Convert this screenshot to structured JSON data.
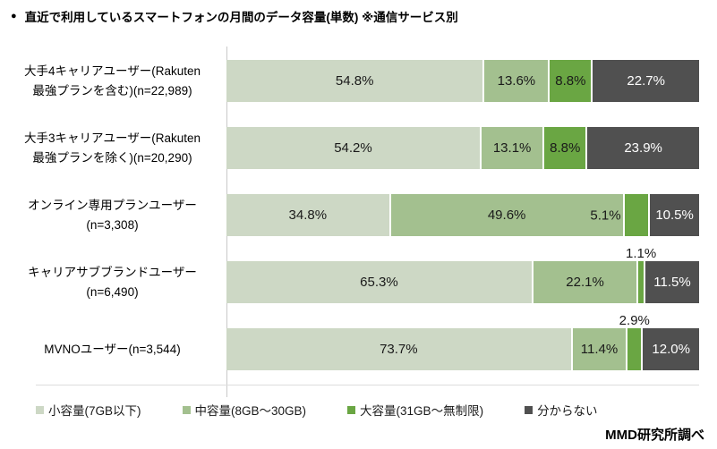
{
  "header": {
    "bullet": "●",
    "title": "直近で利用しているスマートフォンの月間のデータ容量(単数) ※通信サービス別"
  },
  "footer": {
    "source": "MMD研究所調べ"
  },
  "chart_data": {
    "type": "bar",
    "orientation": "horizontal",
    "stacked": true,
    "title": "直近で利用しているスマートフォンの月間のデータ容量(単数) ※通信サービス別",
    "xlim": [
      0,
      100
    ],
    "grid": false,
    "legend_position": "bottom",
    "categories": [
      "大手4キャリアユーザー(Rakuten最強プランを含む)(n=22,989)",
      "大手3キャリアユーザー(Rakuten最強プランを除く)(n=20,290)",
      "オンライン専用プランユーザー(n=3,308)",
      "キャリアサブブランドユーザー(n=6,490)",
      "MVNOユーザー(n=3,544)"
    ],
    "series": [
      {
        "name": "小容量(7GB以下)",
        "color": "#cdd8c5",
        "text_color": "#1a1a1a",
        "values": [
          54.8,
          54.2,
          34.8,
          65.3,
          73.7
        ]
      },
      {
        "name": "中容量(8GB〜30GB)",
        "color": "#a3c08f",
        "text_color": "#1a1a1a",
        "values": [
          13.6,
          13.1,
          49.6,
          22.1,
          11.4
        ]
      },
      {
        "name": "大容量(31GB〜無制限)",
        "color": "#6aa643",
        "text_color": "#1a1a1a",
        "values": [
          8.8,
          8.8,
          5.1,
          1.1,
          2.9
        ]
      },
      {
        "name": "分からない",
        "color": "#505050",
        "text_color": "#ffffff",
        "values": [
          22.7,
          23.9,
          10.5,
          11.5,
          12.0
        ]
      }
    ],
    "bars": [
      {
        "label_lines": [
          "大手4キャリアユーザー(Rakuten",
          "最強プランを含む)(n=22,989)"
        ],
        "segments": [
          {
            "series": 0,
            "value": 54.8,
            "label": "54.8%",
            "label_pos": "inside"
          },
          {
            "series": 1,
            "value": 13.6,
            "label": "13.6%",
            "label_pos": "inside"
          },
          {
            "series": 2,
            "value": 8.8,
            "label": "8.8%",
            "label_pos": "inside"
          },
          {
            "series": 3,
            "value": 22.7,
            "label": "22.7%",
            "label_pos": "inside"
          }
        ]
      },
      {
        "label_lines": [
          "大手3キャリアユーザー(Rakuten",
          "最強プランを除く)(n=20,290)"
        ],
        "segments": [
          {
            "series": 0,
            "value": 54.2,
            "label": "54.2%",
            "label_pos": "inside"
          },
          {
            "series": 1,
            "value": 13.1,
            "label": "13.1%",
            "label_pos": "inside"
          },
          {
            "series": 2,
            "value": 8.8,
            "label": "8.8%",
            "label_pos": "inside"
          },
          {
            "series": 3,
            "value": 23.9,
            "label": "23.9%",
            "label_pos": "inside"
          }
        ]
      },
      {
        "label_lines": [
          "オンライン専用プランユーザー",
          "(n=3,308)"
        ],
        "segments": [
          {
            "series": 0,
            "value": 34.8,
            "label": "34.8%",
            "label_pos": "inside"
          },
          {
            "series": 1,
            "value": 49.6,
            "label": "49.6%",
            "label_pos": "inside"
          },
          {
            "series": 2,
            "value": 5.1,
            "label": "5.1%",
            "label_pos": "outside-left"
          },
          {
            "series": 3,
            "value": 10.5,
            "label": "10.5%",
            "label_pos": "inside"
          }
        ]
      },
      {
        "label_lines": [
          "キャリアサブブランドユーザー",
          "(n=6,490)"
        ],
        "segments": [
          {
            "series": 0,
            "value": 65.3,
            "label": "65.3%",
            "label_pos": "inside"
          },
          {
            "series": 1,
            "value": 22.1,
            "label": "22.1%",
            "label_pos": "inside"
          },
          {
            "series": 2,
            "value": 1.1,
            "label": "1.1%",
            "label_pos": "above"
          },
          {
            "series": 3,
            "value": 11.5,
            "label": "11.5%",
            "label_pos": "inside"
          }
        ]
      },
      {
        "label_lines": [
          "MVNOユーザー(n=3,544)"
        ],
        "segments": [
          {
            "series": 0,
            "value": 73.7,
            "label": "73.7%",
            "label_pos": "inside"
          },
          {
            "series": 1,
            "value": 11.4,
            "label": "11.4%",
            "label_pos": "inside"
          },
          {
            "series": 2,
            "value": 2.9,
            "label": "2.9%",
            "label_pos": "above"
          },
          {
            "series": 3,
            "value": 12.0,
            "label": "12.0%",
            "label_pos": "inside"
          }
        ]
      }
    ]
  },
  "legend": {
    "items": [
      {
        "label": "小容量(7GB以下)"
      },
      {
        "label": "中容量(8GB〜30GB)"
      },
      {
        "label": "大容量(31GB〜無制限)"
      },
      {
        "label": "分からない"
      }
    ]
  }
}
